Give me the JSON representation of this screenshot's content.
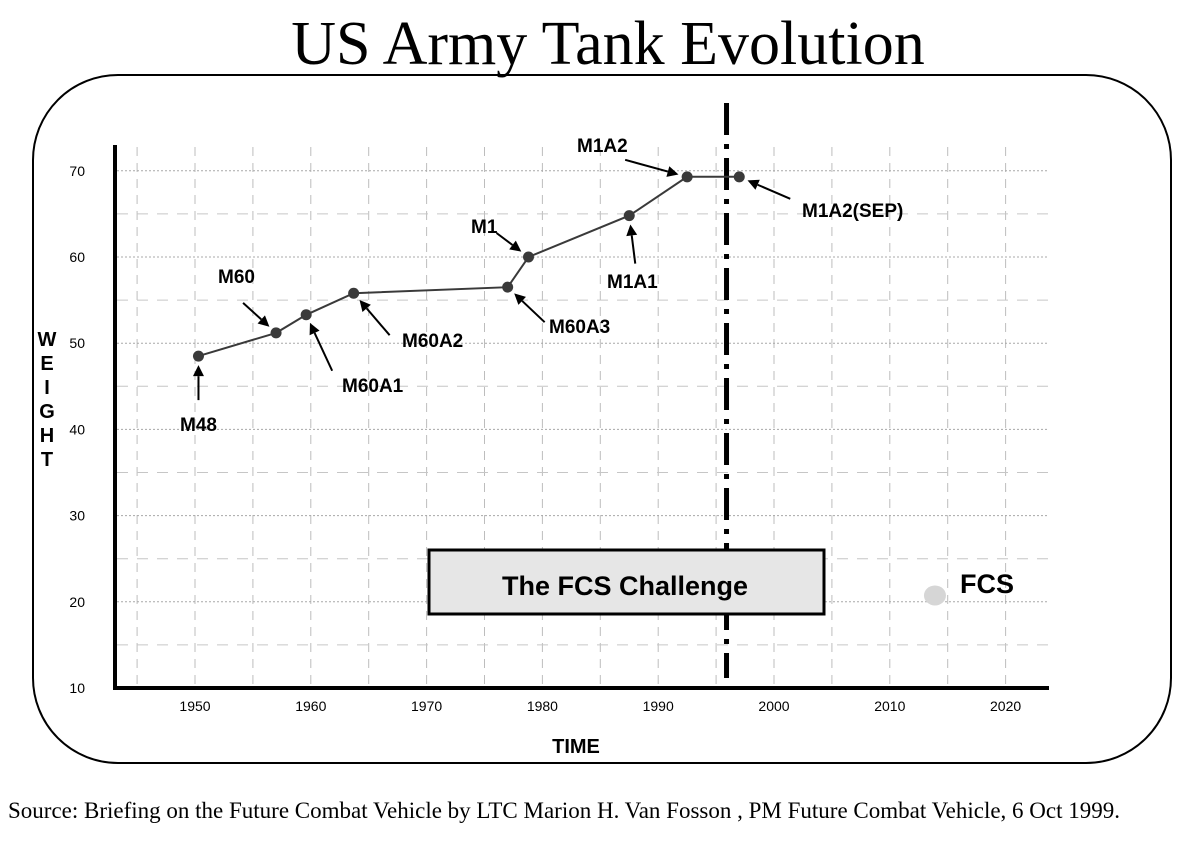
{
  "chart_data": {
    "type": "line",
    "title": "US Army Tank Evolution",
    "xlabel": "TIME",
    "ylabel": "WEIGHT",
    "xlim": [
      1943,
      2024
    ],
    "ylim": [
      10,
      73
    ],
    "x_ticks": [
      1950,
      1960,
      1970,
      1980,
      1990,
      2000,
      2010,
      2020
    ],
    "y_ticks": [
      10,
      20,
      30,
      40,
      50,
      60,
      70
    ],
    "grid": true,
    "series": [
      {
        "points": [
          {
            "x": 1950.3,
            "y": 48.5,
            "label": "M48"
          },
          {
            "x": 1957,
            "y": 51.2,
            "label": "M60"
          },
          {
            "x": 1959.6,
            "y": 53.3,
            "label": "M60A1"
          },
          {
            "x": 1963.7,
            "y": 55.8,
            "label": "M60A2"
          },
          {
            "x": 1977,
            "y": 56.5,
            "label": "M60A3"
          },
          {
            "x": 1978.8,
            "y": 60,
            "label": "M1"
          },
          {
            "x": 1987.5,
            "y": 64.8,
            "label": "M1A1"
          },
          {
            "x": 1992.5,
            "y": 69.3,
            "label": "M1A2"
          },
          {
            "x": 1997,
            "y": 69.3,
            "label": "M1A2(SEP)"
          }
        ]
      }
    ],
    "isolated_points": [
      {
        "x": 2013.9,
        "y": 20.5,
        "label": "FCS"
      }
    ],
    "reference_line_x": 1995.9,
    "annotation_box": "The FCS Challenge",
    "colors": {
      "line": "#3a3a3a",
      "marker": "#3a3a3a",
      "fcs_marker": "#d6d6d6",
      "challenge_box_fill": "#e6e6e6"
    }
  },
  "source": "Source:  Briefing on the Future Combat Vehicle by LTC Marion H. Van Fosson , PM Future Combat Vehicle, 6 Oct 1999."
}
